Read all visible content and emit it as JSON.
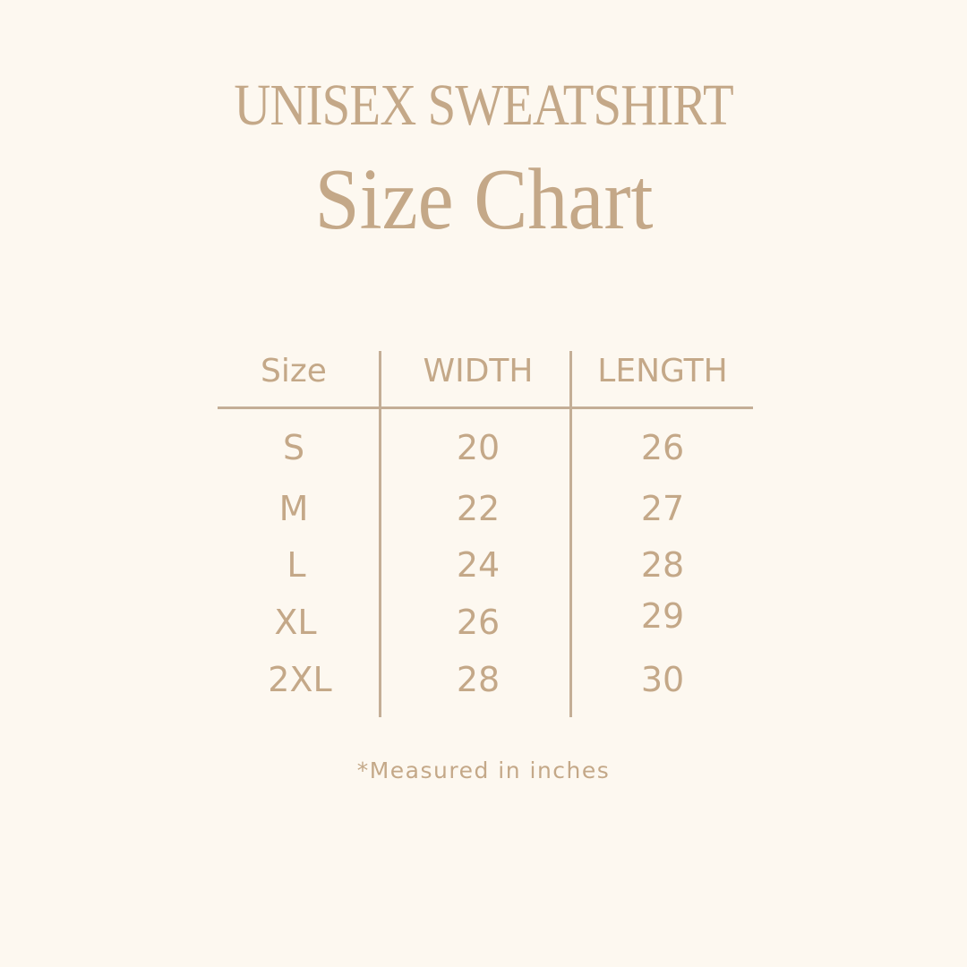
{
  "title": {
    "line1": "UNISEX SWEATSHIRT",
    "line2": "Size Chart"
  },
  "table": {
    "headers": [
      "Size",
      "WIDTH",
      "LENGTH"
    ],
    "rows": [
      [
        "S",
        "20",
        "26"
      ],
      [
        "M",
        "22",
        "27"
      ],
      [
        "L",
        "24",
        "28"
      ],
      [
        "XL",
        "26",
        "29"
      ],
      [
        "2XL",
        "28",
        "30"
      ]
    ]
  },
  "footnote": "*Measured in inches",
  "colors": {
    "background": "#fdf8f0",
    "text": "#c4a888",
    "lines": "#c4ae96"
  }
}
